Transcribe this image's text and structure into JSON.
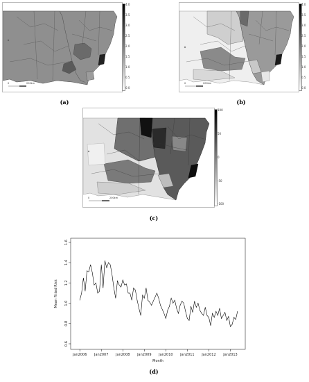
{
  "figure": {
    "panels": [
      {
        "caption": "(a)",
        "colorbar": {
          "labels": [
            "4.0",
            "3.5",
            "3.0",
            "2.5",
            "2.0",
            "1.5",
            "1.0",
            "0.5",
            "0.0"
          ],
          "min": 0.0,
          "max": 4.0,
          "palette": "greyscale"
        },
        "scale_bar": {
          "start": "0",
          "end": "200km"
        },
        "region_level": "medium grey, uniform"
      },
      {
        "caption": "(b)",
        "colorbar": {
          "labels": [
            "4.0",
            "3.5",
            "3.0",
            "2.5",
            "2.0",
            "1.5",
            "1.0",
            "0.5",
            "0.0"
          ],
          "min": 0.0,
          "max": 4.0,
          "palette": "greyscale"
        },
        "scale_bar": {
          "start": "0",
          "end": "200km"
        },
        "region_level": "mixed grey levels"
      },
      {
        "caption": "(c)",
        "colorbar": {
          "labels": [
            "100",
            "50",
            "0",
            "-50",
            "-100"
          ],
          "min": -100,
          "max": 100,
          "palette": "greyscale"
        },
        "scale_bar": {
          "start": "0",
          "end": "200km"
        },
        "region_level": "dark in north, light in south and west"
      }
    ],
    "line_panel": {
      "caption": "(d)"
    }
  },
  "chart_data": {
    "type": "line",
    "title": "",
    "xlabel": "Month",
    "ylabel": "Mean Fitted Risk",
    "ylim": [
      0.6,
      1.6
    ],
    "y_ticks": [
      "0.6",
      "0.8",
      "1.0",
      "1.2",
      "1.4",
      "1.6"
    ],
    "x_ticks": [
      "Jan2006",
      "Jan2007",
      "Jan2008",
      "Jan2009",
      "Jan2010",
      "Jan2011",
      "Jan2012",
      "Jan2013"
    ],
    "x_tick_months": [
      0,
      12,
      24,
      36,
      48,
      60,
      72,
      84
    ],
    "grid": false,
    "series": [
      {
        "x": [
          0,
          1,
          2,
          3,
          4,
          5,
          6,
          7,
          8,
          9,
          10,
          11,
          12,
          13,
          14,
          15,
          16,
          17,
          18,
          19,
          20,
          21,
          22,
          23,
          24,
          25,
          26,
          27,
          28,
          29,
          30,
          31,
          32,
          33,
          34,
          35,
          36,
          37,
          38,
          39,
          40,
          41,
          42,
          43,
          44,
          45,
          46,
          47,
          48,
          49,
          50,
          51,
          52,
          53,
          54,
          55,
          56,
          57,
          58,
          59,
          60,
          61,
          62,
          63,
          64,
          65,
          66,
          67,
          68,
          69,
          70,
          71,
          72,
          73,
          74,
          75,
          76,
          77,
          78,
          79,
          80,
          81,
          82,
          83,
          84,
          85,
          86,
          87,
          88
        ],
        "values": [
          1.03,
          1.1,
          1.25,
          1.12,
          1.32,
          1.31,
          1.38,
          1.3,
          1.18,
          1.2,
          1.1,
          1.12,
          1.38,
          1.15,
          1.42,
          1.35,
          1.4,
          1.38,
          1.28,
          1.15,
          1.05,
          1.22,
          1.18,
          1.16,
          1.23,
          1.18,
          1.19,
          1.1,
          1.1,
          1.03,
          1.15,
          1.13,
          1.03,
          0.95,
          0.88,
          1.08,
          1.05,
          1.15,
          1.03,
          1.01,
          0.98,
          1.02,
          1.06,
          1.1,
          1.05,
          0.98,
          0.94,
          0.9,
          0.85,
          0.93,
          0.97,
          1.05,
          1.0,
          1.03,
          0.95,
          0.9,
          0.98,
          1.02,
          1.0,
          0.92,
          0.85,
          0.83,
          0.97,
          0.91,
          1.02,
          0.96,
          1.0,
          0.93,
          0.9,
          0.88,
          0.96,
          0.88,
          0.86,
          0.78,
          0.9,
          0.86,
          0.92,
          0.88,
          0.95,
          0.85,
          0.88,
          0.91,
          0.83,
          0.87,
          0.77,
          0.79,
          0.86,
          0.84,
          0.92
        ]
      }
    ]
  }
}
